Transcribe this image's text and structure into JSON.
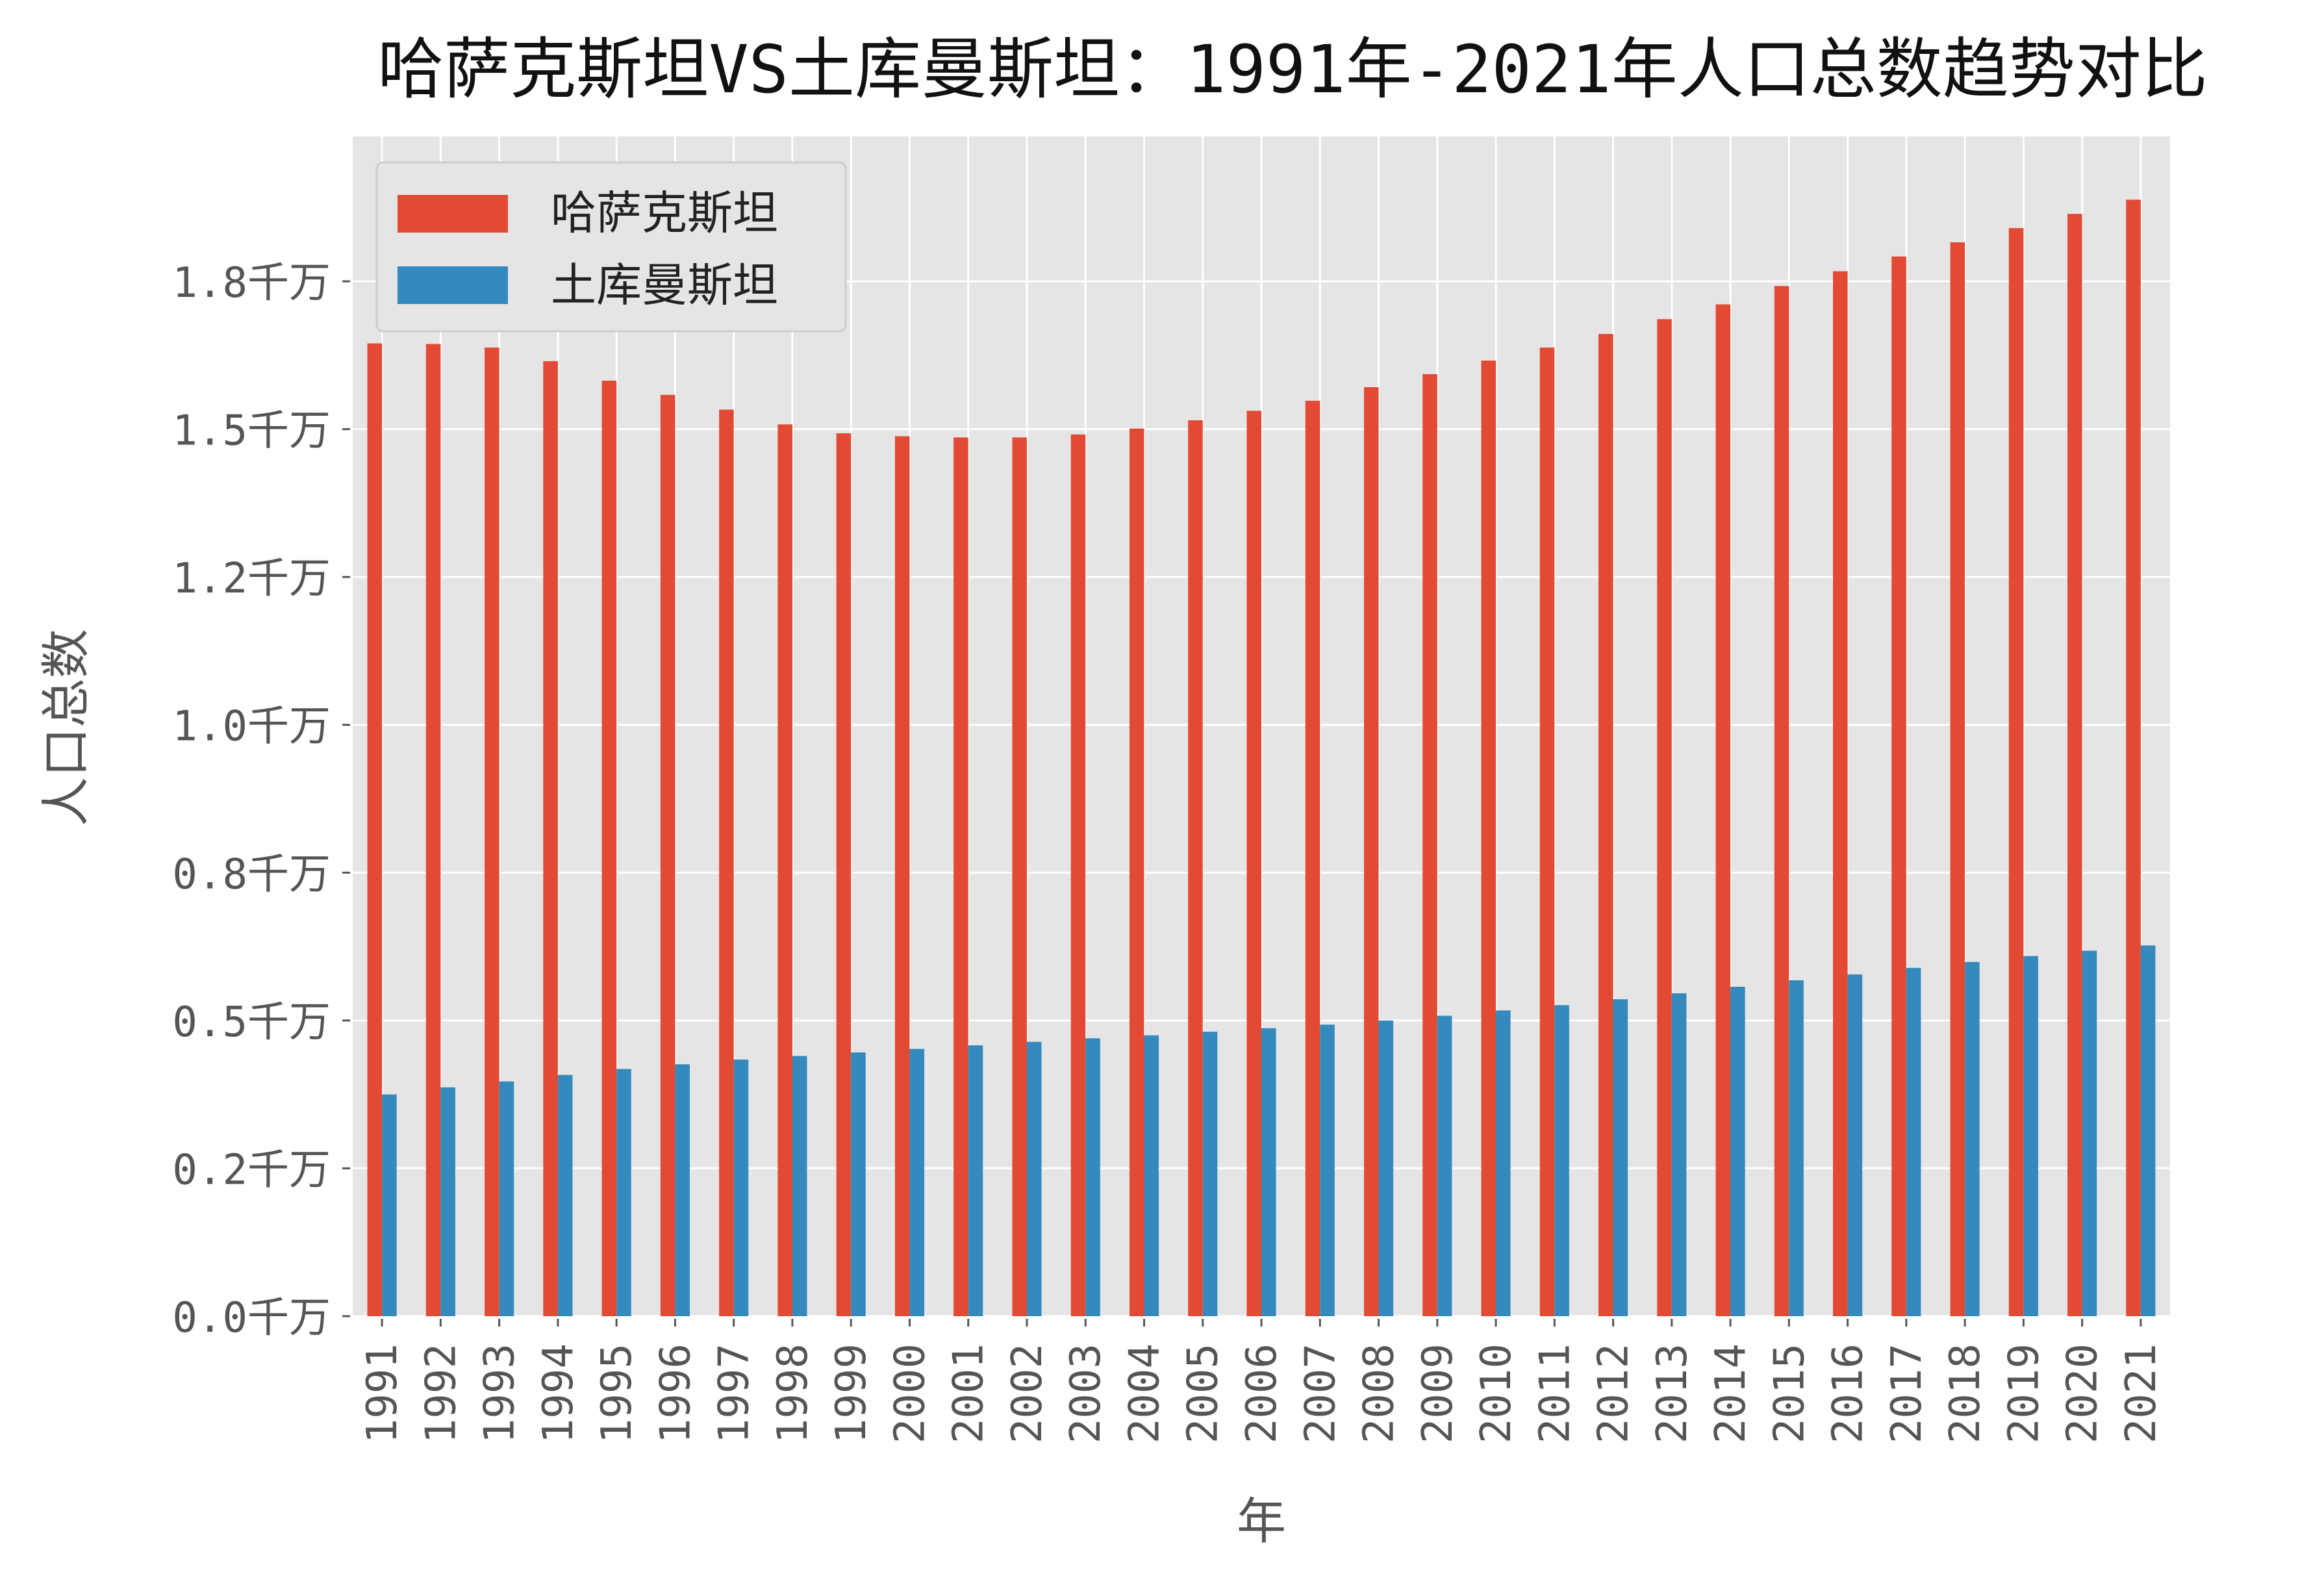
{
  "chart_data": {
    "type": "bar",
    "title": "哈萨克斯坦VS土库曼斯坦：1991年-2021年人口总数趋势对比",
    "xlabel": "年",
    "ylabel": "人口总数",
    "categories": [
      "1991",
      "1992",
      "1993",
      "1994",
      "1995",
      "1996",
      "1997",
      "1998",
      "1999",
      "2000",
      "2001",
      "2002",
      "2003",
      "2004",
      "2005",
      "2006",
      "2007",
      "2008",
      "2009",
      "2010",
      "2011",
      "2012",
      "2013",
      "2014",
      "2015",
      "2016",
      "2017",
      "2018",
      "2019",
      "2020",
      "2021"
    ],
    "series": [
      {
        "name": "哈萨克斯坦",
        "color": "#e24a33",
        "values": [
          16450000,
          16440000,
          16380000,
          16150000,
          15820000,
          15580000,
          15330000,
          15080000,
          14930000,
          14880000,
          14860000,
          14860000,
          14910000,
          15010000,
          15150000,
          15310000,
          15480000,
          15710000,
          15930000,
          16160000,
          16380000,
          16610000,
          16860000,
          17110000,
          17420000,
          17670000,
          17920000,
          18160000,
          18400000,
          18640000,
          18880000
        ]
      },
      {
        "name": "土库曼斯坦",
        "color": "#348abd",
        "values": [
          3750000,
          3870000,
          3970000,
          4080000,
          4180000,
          4260000,
          4340000,
          4400000,
          4460000,
          4520000,
          4580000,
          4640000,
          4700000,
          4750000,
          4810000,
          4870000,
          4930000,
          5000000,
          5080000,
          5170000,
          5260000,
          5360000,
          5460000,
          5570000,
          5680000,
          5780000,
          5890000,
          5990000,
          6090000,
          6180000,
          6270000
        ]
      }
    ],
    "yticks": [
      0,
      2500000,
      5000000,
      7500000,
      10000000,
      12500000,
      15000000,
      17500000
    ],
    "ytick_labels": [
      "0.0千万",
      "0.2千万",
      "0.5千万",
      "0.8千万",
      "1.0千万",
      "1.2千万",
      "1.5千万",
      "1.8千万"
    ],
    "ylim": [
      0,
      19950000
    ],
    "grid": true,
    "legend_position": "top-left"
  }
}
